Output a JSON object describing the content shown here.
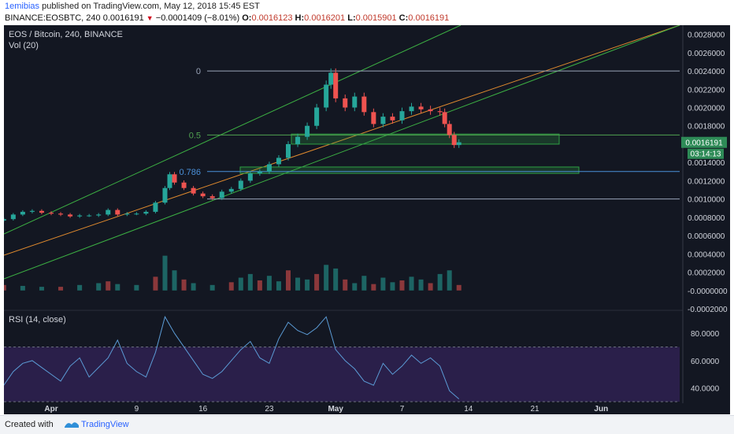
{
  "header": {
    "user": "1emibias",
    "published": "published on TradingView.com, May 12, 2018 15:45 EST",
    "symbol": "BINANCE:EOSBTC, 240",
    "last": "0.0016191",
    "down_glyph": "▼",
    "change": "−0.0001409 (−8.01%)",
    "o_label": "O:",
    "o_val": "0.0016123",
    "h_label": "H:",
    "h_val": "0.0016201",
    "l_label": "L:",
    "l_val": "0.0015901",
    "c_label": "C:",
    "c_val": "0.0016191"
  },
  "chart_legend": {
    "title": "EOS / Bitcoin, 240, BINANCE",
    "vol": "Vol (20)",
    "rsi": "RSI (14, close)"
  },
  "fib_levels": [
    {
      "label": "0",
      "value": 0.0024,
      "color": "#9aa4b8"
    },
    {
      "label": "0.5",
      "value": 0.0017,
      "color": "#51a351"
    },
    {
      "label": "0.786",
      "value": 0.0013,
      "color": "#4a90d9"
    },
    {
      "label": "",
      "value": 0.001,
      "color": "#9aa4b8"
    }
  ],
  "price_tag": {
    "value": "0.0016191",
    "countdown": "03:14:13"
  },
  "colors": {
    "bg": "#131722",
    "up": "#26a69a",
    "down": "#ef5350",
    "rsi_line": "#5b9bd5",
    "rsi_band": "#2a1f4a",
    "channel": "#3cb043",
    "median": "#e08a2e",
    "zone": "#2ea043"
  },
  "chart_data": {
    "type": "candlestick",
    "symbol": "EOS / Bitcoin",
    "x_tick_labels": [
      "Apr",
      "9",
      "16",
      "23",
      "May",
      "7",
      "14",
      "21",
      "Jun"
    ],
    "price_ylim": [
      -0.0002,
      0.0029
    ],
    "price_tick_labels": [
      "0.0028000",
      "0.0026000",
      "0.0024000",
      "0.0022000",
      "0.0020000",
      "0.0018000",
      "0.0016000",
      "0.0014000",
      "0.0012000",
      "0.0010000",
      "0.0008000",
      "0.0006000",
      "0.0004000",
      "0.0002000",
      "-0.0000000",
      "-0.0002000"
    ],
    "price_ticks": [
      0.0028,
      0.0026,
      0.0024,
      0.0022,
      0.002,
      0.0018,
      0.0016,
      0.0014,
      0.0012,
      0.001,
      0.0008,
      0.0006,
      0.0004,
      0.0002,
      0.0,
      -0.0002
    ],
    "rsi_ylim": [
      30,
      95
    ],
    "rsi_tick_labels": [
      "80.0000",
      "60.0000",
      "40.0000"
    ],
    "rsi_ticks": [
      80,
      60,
      40
    ],
    "rsi_band": [
      30,
      70
    ],
    "price_series": {
      "name": "",
      "days": [
        -6,
        -5,
        -4,
        -3,
        -2,
        -1,
        0,
        1,
        2,
        3,
        4,
        5,
        6,
        7,
        8,
        9,
        10,
        11,
        11.5,
        12,
        13,
        14,
        15,
        16,
        17,
        18,
        19,
        20,
        21,
        22,
        23,
        24,
        25,
        26,
        27,
        28,
        28.5,
        29,
        30,
        31,
        32,
        33,
        34,
        35,
        36,
        37,
        38,
        39,
        40,
        40.5,
        41,
        41.5,
        42
      ],
      "close": [
        0.00078,
        0.00083,
        0.00086,
        0.00087,
        0.00085,
        0.00084,
        0.00083,
        0.00081,
        0.00082,
        0.00082,
        0.00083,
        0.00088,
        0.00083,
        0.00084,
        0.00084,
        0.00086,
        0.00096,
        0.00112,
        0.00127,
        0.00118,
        0.00112,
        0.00106,
        0.00103,
        0.00101,
        0.00108,
        0.00111,
        0.0012,
        0.00128,
        0.0013,
        0.00138,
        0.00145,
        0.0016,
        0.00168,
        0.0018,
        0.002,
        0.00225,
        0.00238,
        0.0021,
        0.002,
        0.00212,
        0.00195,
        0.00182,
        0.0019,
        0.00186,
        0.00196,
        0.00201,
        0.00198,
        0.00196,
        0.00195,
        0.00182,
        0.0017,
        0.00159,
        0.00162
      ]
    },
    "rsi_series": {
      "name": "",
      "days": [
        -6,
        -5,
        -4,
        -3,
        -2,
        -1,
        0,
        1,
        2,
        3,
        4,
        5,
        6,
        7,
        8,
        9,
        10,
        11,
        12,
        13,
        14,
        15,
        16,
        17,
        18,
        19,
        20,
        21,
        22,
        23,
        24,
        25,
        26,
        27,
        28,
        29,
        30,
        31,
        32,
        33,
        34,
        35,
        36,
        37,
        38,
        39,
        40,
        41,
        42
      ],
      "values": [
        42,
        52,
        58,
        60,
        55,
        50,
        45,
        56,
        62,
        48,
        55,
        62,
        75,
        58,
        52,
        48,
        66,
        92,
        80,
        70,
        60,
        50,
        47,
        52,
        60,
        68,
        74,
        62,
        58,
        76,
        88,
        82,
        79,
        84,
        92,
        68,
        60,
        54,
        45,
        42,
        58,
        50,
        56,
        64,
        58,
        62,
        56,
        38,
        32
      ]
    },
    "volume_series": {
      "name": "",
      "days": [
        -6,
        -4,
        -2,
        0,
        2,
        4,
        5,
        6,
        8,
        10,
        11,
        12,
        13,
        14,
        16,
        18,
        19,
        20,
        21,
        22,
        23,
        24,
        25,
        26,
        27,
        28,
        29,
        30,
        31,
        32,
        33,
        34,
        35,
        36,
        37,
        38,
        39,
        40,
        41,
        42
      ],
      "values": [
        6e-05,
        5e-05,
        4e-05,
        4e-05,
        6e-05,
        8e-05,
        0.0001,
        7e-05,
        6e-05,
        0.00015,
        0.00038,
        0.00022,
        0.00012,
        8e-05,
        6e-05,
        9e-05,
        0.00014,
        0.00018,
        0.00011,
        0.00016,
        0.0001,
        0.00022,
        0.00014,
        0.00012,
        0.00018,
        0.00028,
        0.00024,
        0.00012,
        8e-05,
        0.00016,
        7e-05,
        0.00014,
        9e-05,
        0.00011,
        0.00015,
        0.00012,
        8e-05,
        0.00018,
        0.00022,
        6e-05
      ]
    },
    "annotations": [
      "0",
      "0.5",
      "0.786"
    ]
  }
}
